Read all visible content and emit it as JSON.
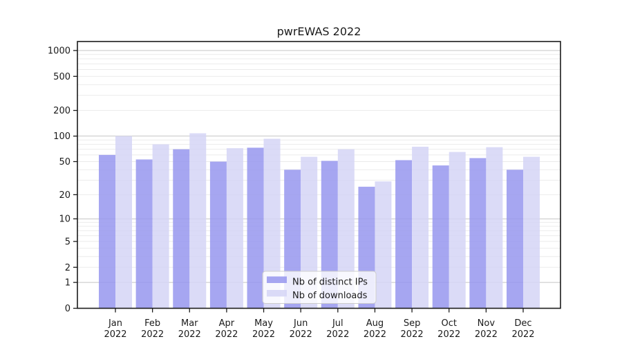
{
  "chart_data": {
    "type": "bar",
    "title": "pwrEWAS 2022",
    "categories": [
      "Jan",
      "Feb",
      "Mar",
      "Apr",
      "May",
      "Jun",
      "Jul",
      "Aug",
      "Sep",
      "Oct",
      "Nov",
      "Dec"
    ],
    "x_year_line": "2022",
    "series": [
      {
        "name": "Nb of distinct IPs",
        "color": "#9696ee",
        "values": [
          60,
          53,
          70,
          50,
          73,
          40,
          51,
          25,
          52,
          45,
          55,
          40
        ]
      },
      {
        "name": "Nb of downloads",
        "color": "#d5d5f6",
        "values": [
          100,
          80,
          108,
          72,
          93,
          57,
          70,
          29,
          75,
          65,
          74,
          57
        ]
      }
    ],
    "bar_opacity": 0.85,
    "yscale": "log1p",
    "ylim": [
      0,
      1000
    ],
    "yticks": [
      0,
      1,
      2,
      5,
      10,
      20,
      50,
      100,
      200,
      500,
      1000
    ],
    "grid": {
      "major_color": "#c4c4c4",
      "minor_color": "#ebebeb",
      "major_at": [
        1,
        10,
        100,
        1000
      ]
    },
    "legend_position": "lower center",
    "axis_color": "#1a1a1a"
  }
}
